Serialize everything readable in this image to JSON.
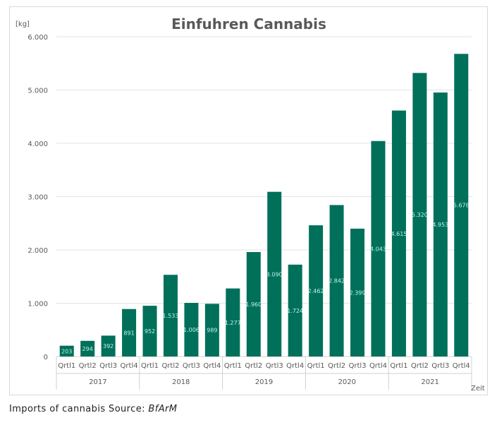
{
  "caption": {
    "text": "Imports of cannabis Source:",
    "source": "BfArM"
  },
  "chart_data": {
    "type": "bar",
    "title": "Einfuhren Cannabis",
    "ylabel": "[kg]",
    "xlabel": "Zeit",
    "ylim": [
      0,
      6000
    ],
    "yticks": [
      0,
      1000,
      2000,
      3000,
      4000,
      5000,
      6000
    ],
    "ytick_labels": [
      "0",
      "1.000",
      "2.000",
      "3.000",
      "4.000",
      "5.000",
      "6.000"
    ],
    "grid": true,
    "bar_color": "#00705a",
    "label_color": "#bff4ea",
    "groups": [
      {
        "year": "2017",
        "categories": [
          "Qrtl1",
          "Qrtl2",
          "Qrtl3",
          "Qrtl4"
        ],
        "values": [
          203,
          294,
          392,
          891
        ],
        "labels": [
          "203",
          "294",
          "392",
          "891"
        ]
      },
      {
        "year": "2018",
        "categories": [
          "Qrtl1",
          "Qrtl2",
          "Qrtl3",
          "Qrtl4"
        ],
        "values": [
          952,
          1533,
          1006,
          989
        ],
        "labels": [
          "952",
          "1.533",
          "1.006",
          "989"
        ]
      },
      {
        "year": "2019",
        "categories": [
          "Qrtl1",
          "Qrtl2",
          "Qrtl3",
          "Qrtl4"
        ],
        "values": [
          1277,
          1960,
          3090,
          1724
        ],
        "labels": [
          "1.277",
          "1.960",
          "3.090",
          "1.724"
        ]
      },
      {
        "year": "2020",
        "categories": [
          "Qrtl1",
          "Qrtl2",
          "Qrtl3",
          "Qrtl4"
        ],
        "values": [
          2462,
          2842,
          2399,
          4043
        ],
        "labels": [
          "2.462",
          "2.842",
          "2.399",
          "4.043"
        ]
      },
      {
        "year": "2021",
        "categories": [
          "Qrtl1",
          "Qrtl2",
          "Qrtl3",
          "Qrtl4"
        ],
        "values": [
          4615,
          5320,
          4953,
          5678
        ],
        "labels": [
          "4.615",
          "5.320",
          "4.953",
          "5.678"
        ]
      }
    ]
  }
}
